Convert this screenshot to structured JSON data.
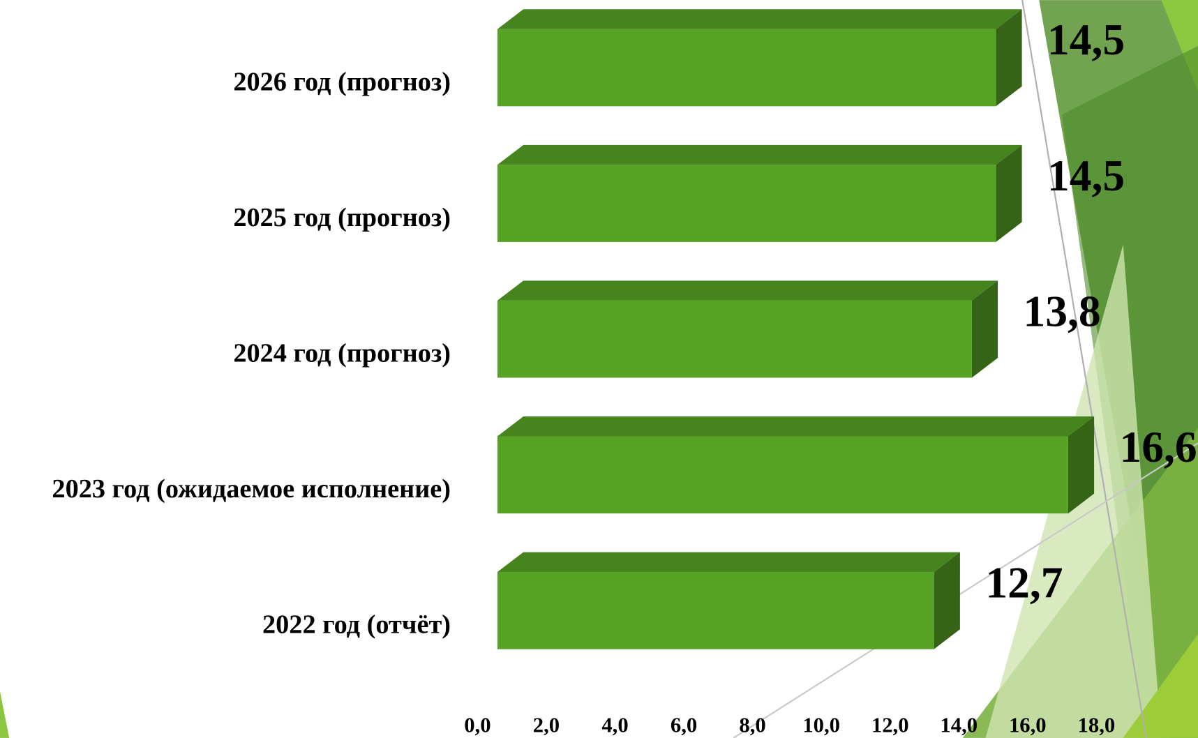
{
  "chart_data": {
    "type": "bar3d",
    "orientation": "horizontal",
    "categories": [
      "2026 год (прогноз)",
      "2025 год (прогноз)",
      "2024 год (прогноз)",
      "2023 год (ожидаемое исполнение)",
      "2022 год (отчёт)"
    ],
    "values": [
      14.5,
      14.5,
      13.8,
      16.6,
      12.7
    ],
    "value_labels": [
      "14,5",
      "14,5",
      "13,8",
      "16,6",
      "12,7"
    ],
    "color": "#55a224",
    "xlim": [
      0,
      18
    ],
    "xticks": [
      {
        "value": 0,
        "label": "0,0"
      },
      {
        "value": 2,
        "label": "2,0"
      },
      {
        "value": 4,
        "label": "4,0"
      },
      {
        "value": 6,
        "label": "6,0"
      },
      {
        "value": 8,
        "label": "8,0"
      },
      {
        "value": 10,
        "label": "10,0"
      },
      {
        "value": 12,
        "label": "12,0"
      },
      {
        "value": 14,
        "label": "14,0"
      },
      {
        "value": 16,
        "label": "16,0"
      },
      {
        "value": 18,
        "label": "18,0"
      }
    ],
    "grid": false
  }
}
